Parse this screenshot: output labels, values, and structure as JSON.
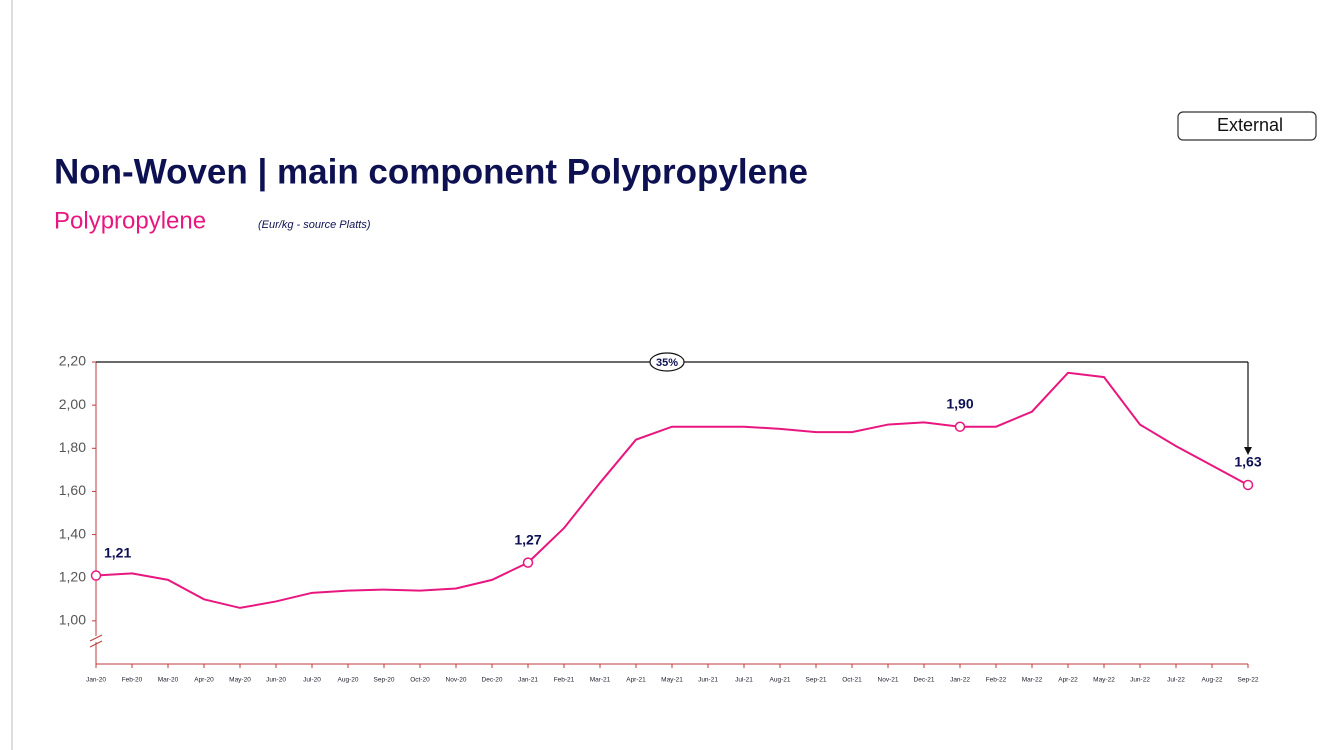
{
  "badge": "External",
  "chart_data": {
    "type": "line",
    "title": "Non-Woven | main component Polypropylene",
    "subtitle": "Polypropylene",
    "note": "(Eur/kg - source Platts)",
    "annotation": "35%",
    "categories": [
      "Jan-20",
      "Feb-20",
      "Mar-20",
      "Apr-20",
      "May-20",
      "Jun-20",
      "Jul-20",
      "Aug-20",
      "Sep-20",
      "Oct-20",
      "Nov-20",
      "Dec-20",
      "Jan-21",
      "Feb-21",
      "Mar-21",
      "Apr-21",
      "May-21",
      "Jun-21",
      "Jul-21",
      "Aug-21",
      "Sep-21",
      "Oct-21",
      "Nov-21",
      "Dec-21",
      "Jan-22",
      "Feb-22",
      "Mar-22",
      "Apr-22",
      "May-22",
      "Jun-22",
      "Jul-22",
      "Aug-22",
      "Sep-22"
    ],
    "values": [
      1.21,
      1.22,
      1.19,
      1.1,
      1.06,
      1.09,
      1.13,
      1.14,
      1.145,
      1.14,
      1.15,
      1.19,
      1.27,
      1.43,
      1.64,
      1.84,
      1.9,
      1.9,
      1.9,
      1.89,
      1.875,
      1.875,
      1.91,
      1.92,
      1.9,
      1.9,
      1.97,
      2.15,
      2.13,
      1.91,
      1.81,
      1.72,
      1.63
    ],
    "value_labels": [
      "1,21",
      null,
      null,
      null,
      null,
      null,
      null,
      null,
      null,
      null,
      null,
      null,
      "1,27",
      null,
      null,
      null,
      null,
      null,
      null,
      null,
      null,
      null,
      null,
      null,
      "1,90",
      null,
      null,
      null,
      null,
      null,
      null,
      null,
      "1,63"
    ],
    "color": "#e8177f",
    "ylim": [
      0.8,
      2.2
    ],
    "yticks": [
      {
        "value": 1.0,
        "label": "1,00"
      },
      {
        "value": 1.2,
        "label": "1,20"
      },
      {
        "value": 1.4,
        "label": "1,40"
      },
      {
        "value": 1.6,
        "label": "1,60"
      },
      {
        "value": 1.8,
        "label": "1,80"
      },
      {
        "value": 2.0,
        "label": "2,00"
      },
      {
        "value": 2.2,
        "label": "2,20"
      }
    ]
  }
}
